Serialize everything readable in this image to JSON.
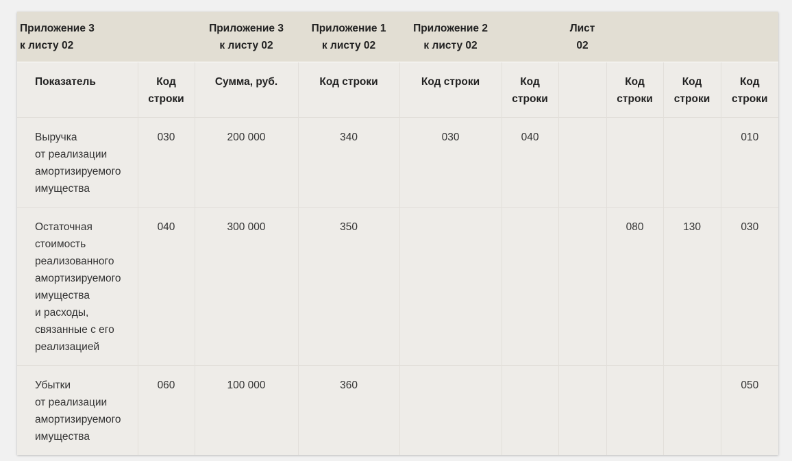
{
  "header_top": {
    "group1": [
      "Приложение 3",
      "к листу 02"
    ],
    "group2": [
      "Приложение 3",
      "к листу 02"
    ],
    "group3": [
      "Приложение 1",
      "к листу 02"
    ],
    "group4": [
      "Приложение 2",
      "к листу 02"
    ],
    "group5": [
      "Лист",
      "02"
    ]
  },
  "columns": [
    [
      "Показатель"
    ],
    [
      "Код",
      "строки"
    ],
    [
      "Сумма, руб."
    ],
    [
      "Код строки"
    ],
    [
      "Код строки"
    ],
    [
      "Код",
      "строки"
    ],
    [
      ""
    ],
    [
      "Код",
      "строки"
    ],
    [
      "Код",
      "строки"
    ],
    [
      "Код",
      "строки"
    ]
  ],
  "rows": [
    {
      "indicator": [
        "Выручка",
        "от реализации",
        "амортизируемого",
        "имущества"
      ],
      "cells": [
        "030",
        "200 000",
        "340",
        "030",
        "040",
        "",
        "",
        "",
        "010"
      ]
    },
    {
      "indicator": [
        "Остаточная",
        "стоимость",
        "реализованного",
        "амортизируемого",
        "имущества",
        "и расходы,",
        "связанные с его",
        "реализацией"
      ],
      "cells": [
        "040",
        "300 000",
        "350",
        "",
        "",
        "",
        "080",
        "130",
        "030"
      ]
    },
    {
      "indicator": [
        "Убытки",
        "от реализации",
        "амортизируемого",
        "имущества"
      ],
      "cells": [
        "060",
        "100 000",
        "360",
        "",
        "",
        "",
        "",
        "",
        "050"
      ]
    }
  ]
}
